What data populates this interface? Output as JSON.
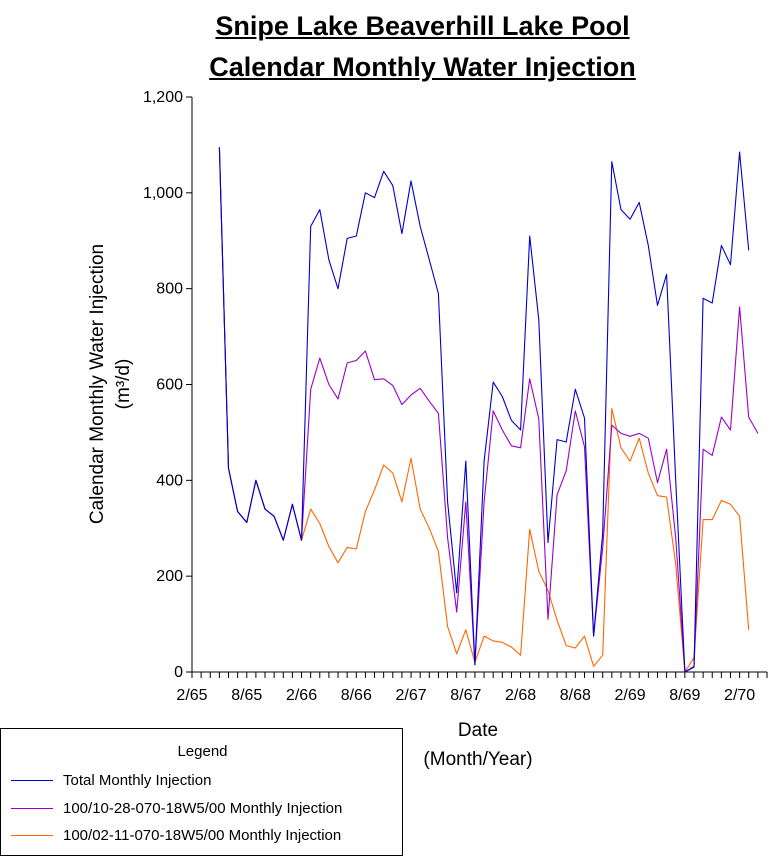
{
  "title_lines": [
    "Snipe Lake Beaverhill Lake Pool",
    "Calendar Monthly Water Injection"
  ],
  "y_axis_title": {
    "line1": "Calendar Monthly Water Injection",
    "line2": "(m³/d)"
  },
  "x_axis_title": {
    "line1": "Date",
    "line2": "(Month/Year)"
  },
  "legend": {
    "title": "Legend",
    "items": [
      {
        "label": "Total Monthly Injection",
        "color": "#0000cc"
      },
      {
        "label": "100/10-28-070-18W5/00 Monthly Injection",
        "color": "#9900cc"
      },
      {
        "label": "100/02-11-070-18W5/00 Monthly Injection",
        "color": "#ff6600"
      }
    ]
  },
  "chart_data": {
    "type": "line",
    "title": "Snipe Lake Beaverhill Lake Pool Calendar Monthly Water Injection",
    "xlabel": "Date (Month/Year)",
    "ylabel": "Calendar Monthly Water Injection (m³/d)",
    "ylim": [
      0,
      1200
    ],
    "xlim": [
      "1965-02",
      "1970-05"
    ],
    "y_ticks": [
      0,
      200,
      400,
      600,
      800,
      1000,
      1200
    ],
    "y_tick_labels": [
      "0",
      "200",
      "400",
      "600",
      "800",
      "1,000",
      "1,200"
    ],
    "x_tick_labels": [
      {
        "label": "2/65",
        "date": "1965-02"
      },
      {
        "label": "8/65",
        "date": "1965-08"
      },
      {
        "label": "2/66",
        "date": "1966-02"
      },
      {
        "label": "8/66",
        "date": "1966-08"
      },
      {
        "label": "2/67",
        "date": "1967-02"
      },
      {
        "label": "8/67",
        "date": "1967-08"
      },
      {
        "label": "2/68",
        "date": "1968-02"
      },
      {
        "label": "8/68",
        "date": "1968-08"
      },
      {
        "label": "2/69",
        "date": "1969-02"
      },
      {
        "label": "8/69",
        "date": "1969-08"
      },
      {
        "label": "2/70",
        "date": "1970-02"
      }
    ],
    "grid": false,
    "legend_position": "bottom-left",
    "series": [
      {
        "name": "Total Monthly Injection",
        "color": "#0000cc",
        "x": [
          "1965-05",
          "1965-06",
          "1965-07",
          "1965-08",
          "1965-09",
          "1965-10",
          "1965-11",
          "1965-12",
          "1966-01",
          "1966-02",
          "1966-03",
          "1966-04",
          "1966-05",
          "1966-06",
          "1966-07",
          "1966-08",
          "1966-09",
          "1966-10",
          "1966-11",
          "1966-12",
          "1967-01",
          "1967-02",
          "1967-03",
          "1967-04",
          "1967-05",
          "1967-06",
          "1967-07",
          "1967-08",
          "1967-09",
          "1967-10",
          "1967-11",
          "1967-12",
          "1968-01",
          "1968-02",
          "1968-03",
          "1968-04",
          "1968-05",
          "1968-06",
          "1968-07",
          "1968-08",
          "1968-09",
          "1968-10",
          "1968-11",
          "1968-12",
          "1969-01",
          "1969-02",
          "1969-03",
          "1969-04",
          "1969-05",
          "1969-06",
          "1969-07",
          "1969-08",
          "1969-09",
          "1969-10",
          "1969-11",
          "1969-12",
          "1970-01",
          "1970-02",
          "1970-03"
        ],
        "y": [
          1095,
          425,
          335,
          312,
          400,
          340,
          325,
          275,
          350,
          275,
          930,
          965,
          860,
          800,
          905,
          910,
          1000,
          990,
          1045,
          1015,
          915,
          1025,
          930,
          860,
          790,
          355,
          165,
          440,
          15,
          440,
          605,
          575,
          525,
          505,
          910,
          735,
          270,
          485,
          480,
          590,
          530,
          75,
          290,
          1065,
          965,
          945,
          980,
          890,
          765,
          830,
          400,
          0,
          10,
          780,
          770,
          890,
          850,
          1085,
          880
        ]
      },
      {
        "name": "100/10-28-070-18W5/00 Monthly Injection",
        "color": "#9900cc",
        "x": [
          "1965-05",
          "1965-06",
          "1965-07",
          "1965-08",
          "1965-09",
          "1965-10",
          "1965-11",
          "1965-12",
          "1966-01",
          "1966-02",
          "1966-03",
          "1966-04",
          "1966-05",
          "1966-06",
          "1966-07",
          "1966-08",
          "1966-09",
          "1966-10",
          "1966-11",
          "1966-12",
          "1967-01",
          "1967-02",
          "1967-03",
          "1967-04",
          "1967-05",
          "1967-06",
          "1967-07",
          "1967-08",
          "1967-09",
          "1967-10",
          "1967-11",
          "1967-12",
          "1968-01",
          "1968-02",
          "1968-03",
          "1968-04",
          "1968-05",
          "1968-06",
          "1968-07",
          "1968-08",
          "1968-09",
          "1968-10",
          "1968-11",
          "1968-12",
          "1969-01",
          "1969-02",
          "1969-03",
          "1969-04",
          "1969-05",
          "1969-06",
          "1969-07",
          "1969-08",
          "1969-09",
          "1969-10",
          "1969-11",
          "1969-12",
          "1970-01",
          "1970-02",
          "1970-03",
          "1970-04"
        ],
        "y": [
          1095,
          425,
          335,
          312,
          400,
          340,
          325,
          275,
          350,
          275,
          590,
          655,
          600,
          570,
          645,
          650,
          670,
          610,
          612,
          598,
          558,
          578,
          592,
          565,
          540,
          280,
          125,
          355,
          15,
          355,
          545,
          505,
          472,
          468,
          612,
          528,
          110,
          370,
          420,
          545,
          470,
          75,
          260,
          515,
          498,
          492,
          498,
          488,
          395,
          465,
          280,
          0,
          12,
          465,
          452,
          532,
          505,
          762,
          532,
          498
        ]
      },
      {
        "name": "100/02-11-070-18W5/00 Monthly Injection",
        "color": "#ff6600",
        "x": [
          "1965-05",
          "1965-06",
          "1965-07",
          "1965-08",
          "1965-09",
          "1965-10",
          "1965-11",
          "1965-12",
          "1966-01",
          "1966-02",
          "1966-03",
          "1966-04",
          "1966-05",
          "1966-06",
          "1966-07",
          "1966-08",
          "1966-09",
          "1966-10",
          "1966-11",
          "1966-12",
          "1967-01",
          "1967-02",
          "1967-03",
          "1967-04",
          "1967-05",
          "1967-06",
          "1967-07",
          "1967-08",
          "1967-09",
          "1967-10",
          "1967-11",
          "1967-12",
          "1968-01",
          "1968-02",
          "1968-03",
          "1968-04",
          "1968-05",
          "1968-06",
          "1968-07",
          "1968-08",
          "1968-09",
          "1968-10",
          "1968-11",
          "1968-12",
          "1969-01",
          "1969-02",
          "1969-03",
          "1969-04",
          "1969-05",
          "1969-06",
          "1969-07",
          "1969-08",
          "1969-09",
          "1969-10",
          "1969-11",
          "1969-12",
          "1970-01",
          "1970-02",
          "1970-03"
        ],
        "y": [
          1095,
          425,
          335,
          312,
          400,
          340,
          325,
          275,
          350,
          275,
          340,
          310,
          262,
          228,
          260,
          257,
          335,
          380,
          432,
          415,
          355,
          446,
          340,
          300,
          252,
          95,
          38,
          88,
          20,
          75,
          65,
          62,
          52,
          35,
          298,
          210,
          170,
          108,
          55,
          50,
          75,
          12,
          35,
          550,
          468,
          440,
          488,
          415,
          368,
          365,
          225,
          0,
          30,
          318,
          318,
          358,
          350,
          325,
          88
        ]
      }
    ]
  }
}
